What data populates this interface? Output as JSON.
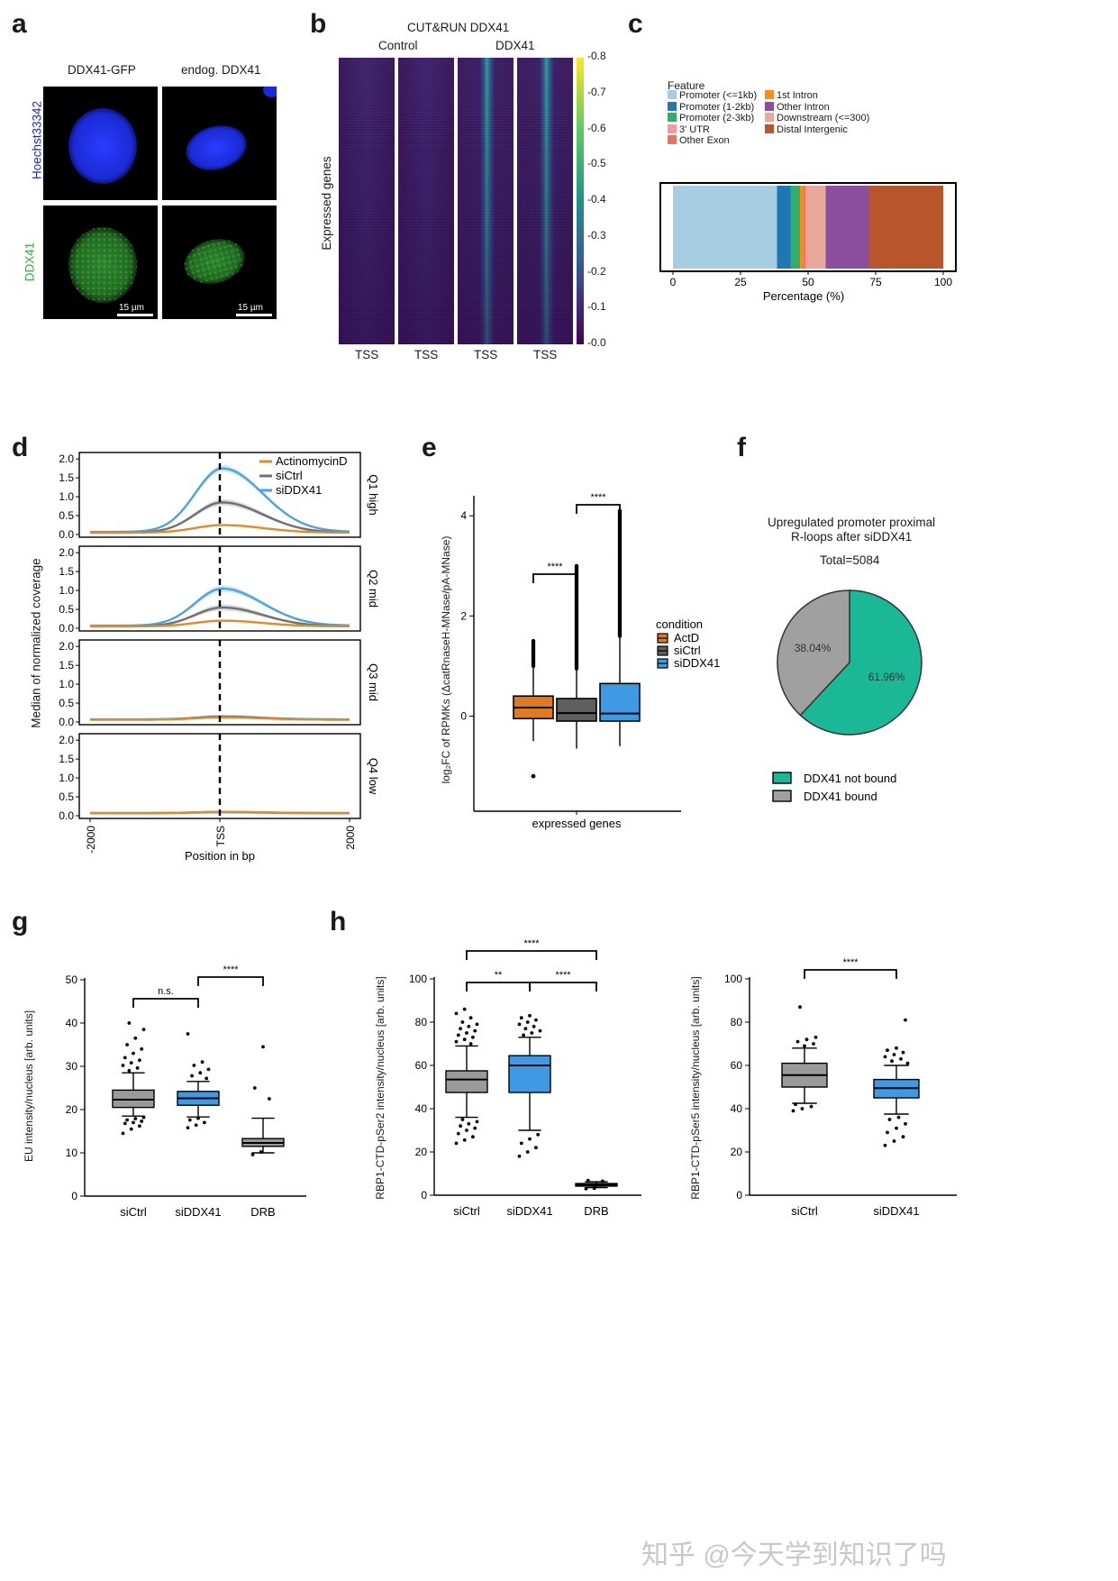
{
  "panel_labels": {
    "a": "a",
    "b": "b",
    "c": "c",
    "d": "d",
    "e": "e",
    "f": "f",
    "g": "g",
    "h": "h"
  },
  "panel_a": {
    "col1": "DDX41-GFP",
    "col2": "endog. DDX41",
    "row1": "Hoechst33342",
    "row2": "DDX41",
    "scale": "15 µm",
    "colors": {
      "blue": "#1a2bd6",
      "green": "#2a8a2a",
      "row2_label": "#3aa64a"
    }
  },
  "panel_b": {
    "title": "CUT&RUN DDX41",
    "group1": "Control",
    "group2": "DDX41",
    "ylabel": "Expressed genes",
    "xtick": "TSS",
    "colorbar_ticks": [
      "0.8",
      "0.7",
      "0.6",
      "0.5",
      "0.4",
      "0.3",
      "0.2",
      "0.1",
      "0.0"
    ]
  },
  "panel_g_axis": {
    "ylabel": "EU intensity/nucleus [arb. units]"
  },
  "panel_h_axis": {
    "ylabel1": "RBP1-CTD-pSer2 intensity/nucleus [arb. units]",
    "ylabel2": "RBP1-CTD-pSer5 intensity/nucleus [arb. units]"
  },
  "panel_e_axis": {
    "ylabel": "log₂FC of RPMKs (ΔcatRnaseH-MNase/pA-MNase)",
    "xlabel": "expressed genes",
    "legend_title": "condition"
  },
  "panel_d_axis": {
    "ylabel": "Median of normalized coverage",
    "xlabel": "Position in bp"
  },
  "panel_f_text": {
    "title1": "Upregulated promoter proximal",
    "title2": "R-loops after siDDX41",
    "total": "Total=5084"
  },
  "chart_data": [
    {
      "panel": "c",
      "type": "bar",
      "legend_title": "Feature",
      "xlabel": "Percentage (%)",
      "xlim": [
        0,
        100
      ],
      "xticks": [
        "0",
        "25",
        "50",
        "75",
        "100"
      ],
      "segments": [
        {
          "name": "Promoter (<=1kb)",
          "value": 38.5,
          "color": "#a6cde2"
        },
        {
          "name": "Promoter (1-2kb)",
          "value": 5.0,
          "color": "#1f78b4"
        },
        {
          "name": "Promoter (2-3kb)",
          "value": 3.5,
          "color": "#2fae6c"
        },
        {
          "name": "1st Intron",
          "value": 1.5,
          "color": "#f58d1f"
        },
        {
          "name": "Other Exon",
          "value": 0.5,
          "color": "#e8735e"
        },
        {
          "name": "3' UTR",
          "value": 1.0,
          "color": "#f59aa0"
        },
        {
          "name": "Downstream (<=300)",
          "value": 6.5,
          "color": "#e8a89a"
        },
        {
          "name": "Other Intron",
          "value": 16.0,
          "color": "#8c4e9e"
        },
        {
          "name": "Distal Intergenic",
          "value": 27.5,
          "color": "#b8552a"
        }
      ],
      "legend_order_left": [
        "Promoter (<=1kb)",
        "Promoter (1-2kb)",
        "Promoter (2-3kb)",
        "3' UTR",
        "Other Exon"
      ],
      "legend_order_right": [
        "1st Intron",
        "Other Intron",
        "Downstream (<=300)",
        "Distal Intergenic"
      ]
    },
    {
      "panel": "d",
      "type": "line",
      "xlabel": "Position in bp",
      "ylabel": "Median of normalized coverage",
      "xticks": [
        "-2000",
        "TSS",
        "2000"
      ],
      "yticks": [
        "0.0",
        "0.5",
        "1.0",
        "1.5",
        "2.0"
      ],
      "ylim": [
        0,
        2.1
      ],
      "legend": [
        "ActinomycinD",
        "siCtrl",
        "siDDX41"
      ],
      "series_colors": {
        "ActinomycinD": "#e08a2a",
        "siCtrl": "#707070",
        "siDDX41": "#4da3e0"
      },
      "facets": [
        {
          "name": "Q1 high",
          "peaks": {
            "ActinomycinD": 0.25,
            "siCtrl": 0.85,
            "siDDX41": 1.75
          },
          "base": {
            "ActinomycinD": 0.05,
            "siCtrl": 0.05,
            "siDDX41": 0.07
          }
        },
        {
          "name": "Q2 mid",
          "peaks": {
            "ActinomycinD": 0.2,
            "siCtrl": 0.55,
            "siDDX41": 1.05
          },
          "base": {
            "ActinomycinD": 0.05,
            "siCtrl": 0.05,
            "siDDX41": 0.07
          }
        },
        {
          "name": "Q3 mid",
          "peaks": {
            "ActinomycinD": 0.12,
            "siCtrl": 0.14,
            "siDDX41": 0.14
          },
          "base": {
            "ActinomycinD": 0.06,
            "siCtrl": 0.06,
            "siDDX41": 0.07
          }
        },
        {
          "name": "Q4 low",
          "peaks": {
            "ActinomycinD": 0.1,
            "siCtrl": 0.1,
            "siDDX41": 0.09
          },
          "base": {
            "ActinomycinD": 0.07,
            "siCtrl": 0.07,
            "siDDX41": 0.07
          }
        }
      ]
    },
    {
      "panel": "e",
      "type": "box",
      "xlabel": "expressed genes",
      "ylabel": "log₂FC of RPMKs (ΔcatRnaseH-MNase/pA-MNase)",
      "yticks": [
        "0",
        "2",
        "4"
      ],
      "ylim": [
        -1.9,
        4.4
      ],
      "legend_title": "condition",
      "groups": [
        {
          "name": "ActD",
          "color": "#e07a22",
          "q1": -0.05,
          "median": 0.17,
          "q3": 0.4,
          "wlo": -0.5,
          "whi": 1.0,
          "outliers_lo": [
            -1.2
          ],
          "outliers_hi_range": [
            1.0,
            1.5
          ]
        },
        {
          "name": "siCtrl",
          "color": "#5f5f5f",
          "q1": -0.1,
          "median": 0.06,
          "q3": 0.35,
          "wlo": -0.65,
          "whi": 0.95,
          "outliers_lo": [],
          "outliers_hi_range": [
            0.95,
            3.0
          ]
        },
        {
          "name": "siDDX41",
          "color": "#3f9ae3",
          "q1": -0.1,
          "median": 0.05,
          "q3": 0.65,
          "wlo": -0.6,
          "whi": 1.6,
          "outliers_lo": [],
          "outliers_hi_range": [
            1.6,
            4.1
          ]
        }
      ],
      "significance": [
        {
          "label": "****",
          "from": 0,
          "to": 1
        },
        {
          "label": "****",
          "from": 1,
          "to": 2
        }
      ]
    },
    {
      "panel": "f",
      "type": "pie",
      "title": "Upregulated promoter proximal R-loops after siDDX41",
      "total_label": "Total=5084",
      "slices": [
        {
          "name": "DDX41 not bound",
          "value": 61.96,
          "label": "61.96%",
          "color": "#1ab896"
        },
        {
          "name": "DDX41 bound",
          "value": 38.04,
          "label": "38.04%",
          "color": "#a0a0a0"
        }
      ]
    },
    {
      "panel": "g",
      "type": "box",
      "ylabel": "EU intensity/nucleus [arb. units]",
      "ylim": [
        0,
        50
      ],
      "yticks": [
        "0",
        "10",
        "20",
        "30",
        "40",
        "50"
      ],
      "groups": [
        {
          "name": "siCtrl",
          "color": "#9a9a9a",
          "q1": 20.5,
          "median": 22.3,
          "q3": 24.5,
          "wlo": 18.5,
          "whi": 28.5,
          "outliers": [
            14.5,
            15.5,
            16.2,
            16.8,
            17.0,
            17.3,
            17.6,
            17.9,
            18.2,
            29.0,
            29.6,
            30.2,
            30.8,
            31.4,
            32.0,
            33.0,
            34.0,
            35.0,
            36.5,
            38.5,
            40.0
          ]
        },
        {
          "name": "siDDX41",
          "color": "#3f9ae3",
          "q1": 21.0,
          "median": 22.6,
          "q3": 24.2,
          "wlo": 18.3,
          "whi": 26.5,
          "outliers": [
            15.8,
            16.4,
            17.0,
            17.6,
            18.0,
            27.2,
            27.8,
            28.5,
            29.3,
            30.2,
            31.0,
            37.5
          ]
        },
        {
          "name": "DRB",
          "color": "#9a9a9a",
          "q1": 11.5,
          "median": 12.3,
          "q3": 13.3,
          "wlo": 10.0,
          "whi": 18.0,
          "outliers": [
            9.6,
            10.2,
            22.5,
            25.0,
            34.5
          ]
        }
      ],
      "significance": [
        {
          "label": "n.s.",
          "from": 0,
          "to": 1
        },
        {
          "label": "****",
          "from": 1,
          "to": 2
        }
      ]
    },
    {
      "panel": "h-left",
      "type": "box",
      "ylabel": "RBP1-CTD-pSer2 intensity/nucleus [arb. units]",
      "ylim": [
        0,
        100
      ],
      "yticks": [
        "0",
        "20",
        "40",
        "60",
        "80",
        "100"
      ],
      "groups": [
        {
          "name": "siCtrl",
          "color": "#9a9a9a",
          "q1": 47.5,
          "median": 53.5,
          "q3": 57.5,
          "wlo": 36,
          "whi": 69,
          "outliers": [
            24,
            25.5,
            27,
            28.5,
            30,
            31,
            32,
            33,
            34,
            35,
            70,
            71,
            72,
            73,
            74,
            75,
            76,
            77,
            78,
            79,
            80,
            82,
            84,
            86
          ]
        },
        {
          "name": "siDDX41",
          "color": "#3f9ae3",
          "q1": 47.5,
          "median": 60,
          "q3": 64.5,
          "wlo": 30,
          "whi": 73,
          "outliers": [
            18,
            20,
            22,
            24,
            26,
            28,
            74,
            75,
            76,
            77,
            78,
            79,
            80,
            81,
            82,
            83
          ]
        },
        {
          "name": "DRB",
          "color": "#9a9a9a",
          "q1": 4.2,
          "median": 4.8,
          "q3": 5.4,
          "wlo": 3.5,
          "whi": 6.2,
          "outliers": [
            3.0,
            3.2,
            6.5,
            6.8
          ]
        }
      ],
      "significance": [
        {
          "label": "**",
          "from": 0,
          "to": 1
        },
        {
          "label": "****",
          "from": 1,
          "to": 2
        },
        {
          "label": "****",
          "from": 0,
          "to": 2
        }
      ]
    },
    {
      "panel": "h-right",
      "type": "box",
      "ylabel": "RBP1-CTD-pSer5 intensity/nucleus [arb. units]",
      "ylim": [
        0,
        100
      ],
      "yticks": [
        "0",
        "20",
        "40",
        "60",
        "80",
        "100"
      ],
      "groups": [
        {
          "name": "siCtrl",
          "color": "#9a9a9a",
          "q1": 50,
          "median": 55.5,
          "q3": 61,
          "wlo": 42.5,
          "whi": 68,
          "outliers": [
            39,
            40,
            41,
            42,
            69,
            70,
            71,
            72,
            73,
            87
          ]
        },
        {
          "name": "siDDX41",
          "color": "#3f9ae3",
          "q1": 45,
          "median": 49.5,
          "q3": 53.5,
          "wlo": 37.5,
          "whi": 60,
          "outliers": [
            23,
            25,
            27,
            29,
            31,
            33,
            35,
            36,
            61,
            62,
            63,
            64,
            65,
            66,
            67,
            68,
            81
          ]
        }
      ],
      "significance": [
        {
          "label": "****",
          "from": 0,
          "to": 1
        }
      ]
    }
  ],
  "watermark": "知乎 @今天学到知识了吗"
}
